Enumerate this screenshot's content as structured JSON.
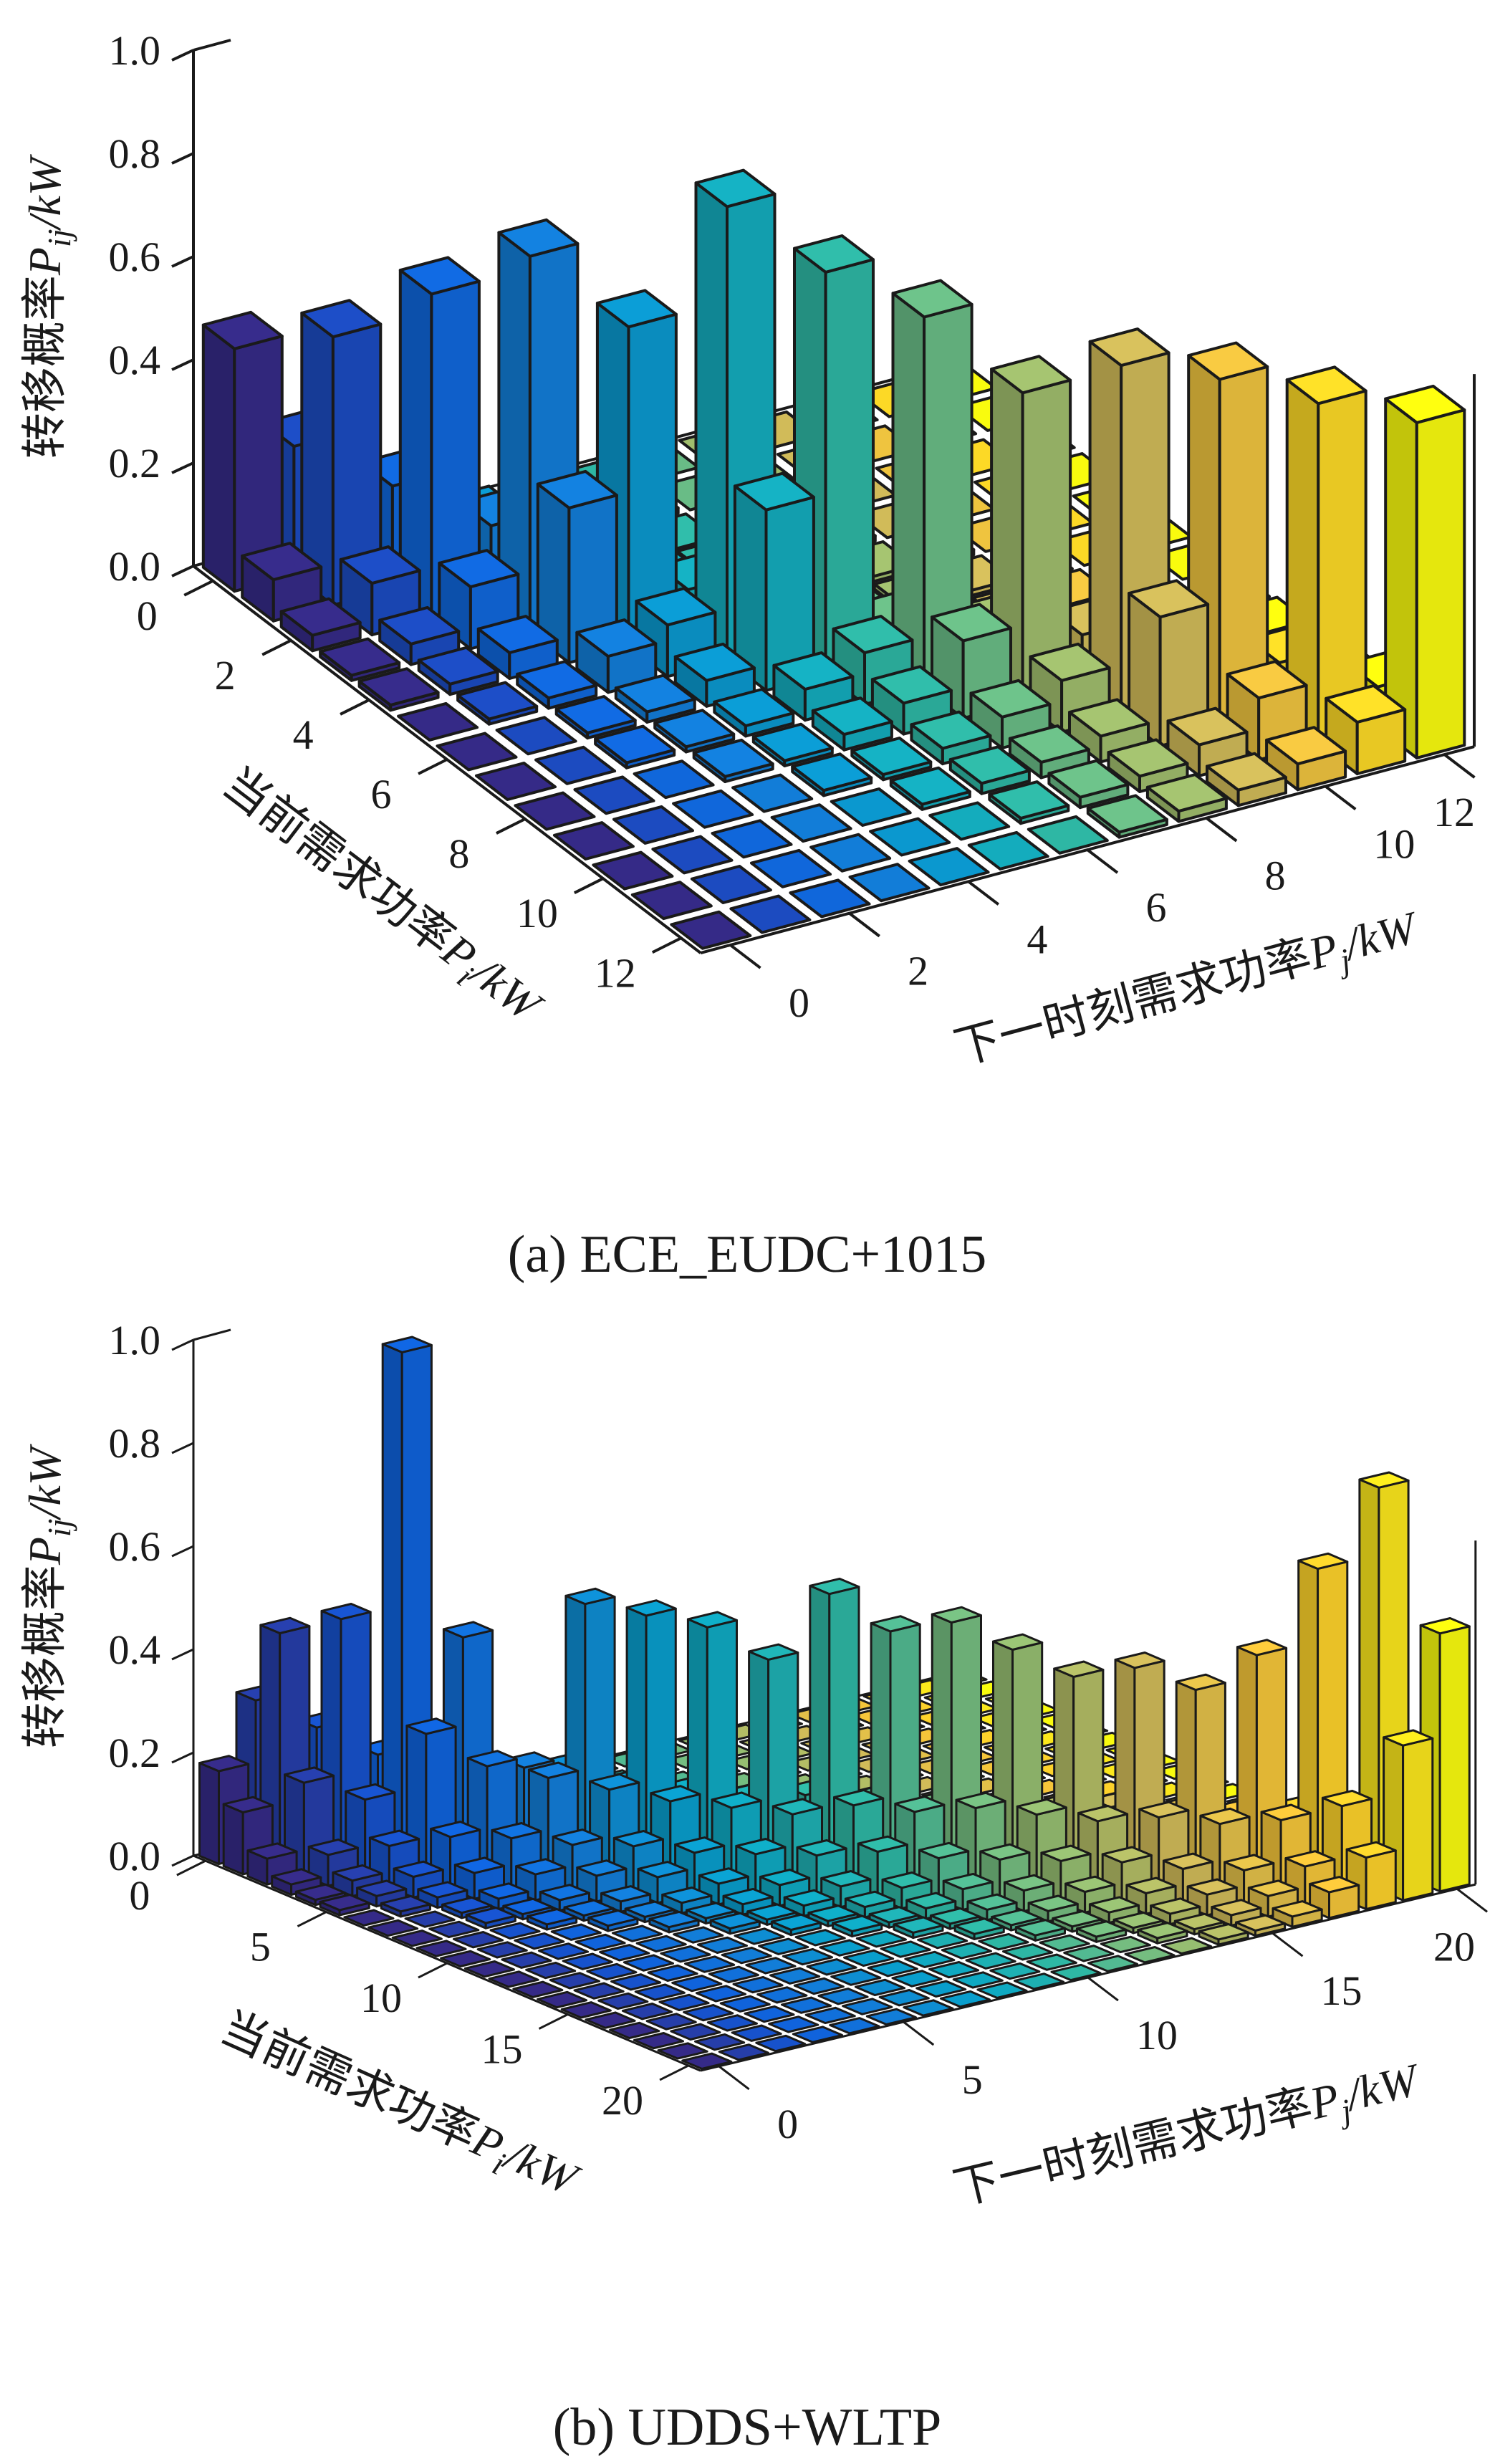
{
  "figure": {
    "background": "#ffffff",
    "edge_color": "#1a1a1a",
    "colormap_name": "parula",
    "colormap_stops": [
      "#352a87",
      "#0f5cdd",
      "#127dd8",
      "#07a6ca",
      "#2eb7a4",
      "#87bf77",
      "#d1bb59",
      "#fec832",
      "#f9fb0e"
    ]
  },
  "chart_data": {
    "type": "bar",
    "variant": "3d-bar-matrix (MATLAB bar3 style transition probability)",
    "legend": "none",
    "grid": "off",
    "charts": [
      {
        "id": "a",
        "caption": "(a) ECE_EUDC+1015",
        "axes": {
          "z": {
            "zh": "转移概率",
            "var": "P",
            "sub": "ij",
            "unit": "/kW",
            "tick_labels": [
              "0.0",
              "0.2",
              "0.4",
              "0.6",
              "0.8",
              "1.0"
            ],
            "tick_values": [
              0,
              0.2,
              0.4,
              0.6,
              0.8,
              1.0
            ],
            "range": [
              0,
              1
            ]
          },
          "i": {
            "zh": "当前需求功率",
            "var": "P",
            "sub": "i",
            "unit": "/kW",
            "tick_labels": [
              "0",
              "2",
              "4",
              "6",
              "8",
              "10",
              "12"
            ],
            "tick_values": [
              0,
              2,
              4,
              6,
              8,
              10,
              12
            ],
            "range": [
              0,
              12
            ]
          },
          "j": {
            "zh": "下一时刻需求功率",
            "var": "P",
            "sub": "j",
            "unit": "/kW",
            "tick_labels": [
              "0",
              "2",
              "4",
              "6",
              "8",
              "10",
              "12"
            ],
            "tick_values": [
              0,
              2,
              4,
              6,
              8,
              10,
              12
            ],
            "range": [
              0,
              12
            ]
          }
        },
        "matrix": [
          [
            0.47,
            0.25,
            0.06,
            0.02,
            0.01,
            0.01,
            0,
            0,
            0,
            0,
            0,
            0,
            0
          ],
          [
            0.08,
            0.52,
            0.2,
            0.05,
            0.02,
            0.01,
            0.01,
            0,
            0,
            0,
            0,
            0,
            0
          ],
          [
            0.03,
            0.1,
            0.63,
            0.15,
            0.05,
            0.02,
            0.01,
            0.01,
            0,
            0,
            0,
            0,
            0
          ],
          [
            0.01,
            0.04,
            0.12,
            0.73,
            0.1,
            0.04,
            0.02,
            0.01,
            0.01,
            0,
            0,
            0,
            0
          ],
          [
            0.01,
            0.02,
            0.05,
            0.3,
            0.62,
            0.08,
            0.03,
            0.02,
            0.01,
            0.01,
            0,
            0,
            0
          ],
          [
            0,
            0.01,
            0.02,
            0.07,
            0.1,
            0.88,
            0.05,
            0.02,
            0.01,
            0.01,
            0,
            0,
            0
          ],
          [
            0,
            0,
            0.01,
            0.02,
            0.05,
            0.35,
            0.78,
            0.06,
            0.02,
            0.01,
            0.01,
            0,
            0
          ],
          [
            0,
            0,
            0.01,
            0.01,
            0.02,
            0.06,
            0.1,
            0.72,
            0.08,
            0.03,
            0.01,
            0.01,
            0
          ],
          [
            0,
            0,
            0,
            0.01,
            0.01,
            0.03,
            0.06,
            0.15,
            0.6,
            0.1,
            0.04,
            0.02,
            0.01
          ],
          [
            0,
            0,
            0,
            0,
            0.01,
            0.01,
            0.03,
            0.06,
            0.1,
            0.68,
            0.12,
            0.04,
            0.02
          ],
          [
            0,
            0,
            0,
            0,
            0,
            0.01,
            0.02,
            0.03,
            0.05,
            0.25,
            0.68,
            0.1,
            0.03
          ],
          [
            0,
            0,
            0,
            0,
            0,
            0,
            0.01,
            0.02,
            0.03,
            0.06,
            0.12,
            0.66,
            0.08
          ],
          [
            0,
            0,
            0,
            0,
            0,
            0,
            0,
            0.01,
            0.02,
            0.03,
            0.05,
            0.1,
            0.65
          ]
        ]
      },
      {
        "id": "b",
        "caption": "(b) UDDS+WLTP",
        "axes": {
          "z": {
            "zh": "转移概率",
            "var": "P",
            "sub": "ij",
            "unit": "/kW",
            "tick_labels": [
              "0.0",
              "0.2",
              "0.4",
              "0.6",
              "0.8",
              "1.0"
            ],
            "tick_values": [
              0,
              0.2,
              0.4,
              0.6,
              0.8,
              1.0
            ],
            "range": [
              0,
              1
            ]
          },
          "i": {
            "zh": "当前需求功率",
            "var": "P",
            "sub": "i",
            "unit": "/kW",
            "tick_labels": [
              "0",
              "5",
              "10",
              "15",
              "20"
            ],
            "tick_values": [
              0,
              5,
              10,
              15,
              20
            ],
            "range": [
              0,
              20
            ]
          },
          "j": {
            "zh": "下一时刻需求功率",
            "var": "P",
            "sub": "j",
            "unit": "/kW",
            "tick_labels": [
              "0",
              "5",
              "10",
              "15",
              "20"
            ],
            "tick_values": [
              0,
              5,
              10,
              15,
              20
            ],
            "range": [
              0,
              20
            ]
          }
        },
        "matrix": [
          [
            0.18,
            0.3,
            0.08,
            0.03,
            0.02,
            0.01,
            0.01,
            0,
            0,
            0,
            0,
            0,
            0,
            0,
            0,
            0,
            0,
            0,
            0,
            0,
            0
          ],
          [
            0.12,
            0.45,
            0.25,
            0.06,
            0.03,
            0.02,
            0.01,
            0.01,
            0,
            0,
            0,
            0,
            0,
            0,
            0,
            0,
            0,
            0,
            0,
            0,
            0
          ],
          [
            0.05,
            0.18,
            0.48,
            0.2,
            0.06,
            0.03,
            0.02,
            0.01,
            0.01,
            0,
            0,
            0,
            0,
            0,
            0,
            0,
            0,
            0,
            0,
            0,
            0
          ],
          [
            0.02,
            0.06,
            0.15,
            1.0,
            0.12,
            0.05,
            0.02,
            0.01,
            0.01,
            0,
            0,
            0,
            0,
            0,
            0,
            0,
            0,
            0,
            0,
            0,
            0
          ],
          [
            0.01,
            0.03,
            0.08,
            0.28,
            0.45,
            0.15,
            0.06,
            0.03,
            0.01,
            0.01,
            0,
            0,
            0,
            0,
            0,
            0,
            0,
            0,
            0,
            0,
            0
          ],
          [
            0.01,
            0.02,
            0.04,
            0.1,
            0.22,
            0.2,
            0.18,
            0.08,
            0.03,
            0.02,
            0.01,
            0,
            0,
            0,
            0,
            0,
            0,
            0,
            0,
            0,
            0
          ],
          [
            0,
            0.01,
            0.02,
            0.05,
            0.1,
            0.2,
            0.52,
            0.15,
            0.06,
            0.03,
            0.01,
            0.01,
            0,
            0,
            0,
            0,
            0,
            0,
            0,
            0,
            0
          ],
          [
            0,
            0,
            0.01,
            0.02,
            0.05,
            0.09,
            0.18,
            0.5,
            0.14,
            0.06,
            0.03,
            0.01,
            0.01,
            0,
            0,
            0,
            0,
            0,
            0,
            0,
            0
          ],
          [
            0,
            0,
            0.01,
            0.01,
            0.02,
            0.05,
            0.09,
            0.16,
            0.48,
            0.13,
            0.06,
            0.03,
            0.01,
            0,
            0,
            0,
            0,
            0,
            0,
            0,
            0
          ],
          [
            0,
            0,
            0,
            0.01,
            0.01,
            0.02,
            0.05,
            0.08,
            0.15,
            0.42,
            0.14,
            0.06,
            0.03,
            0.01,
            0,
            0,
            0,
            0,
            0,
            0,
            0
          ],
          [
            0,
            0,
            0,
            0,
            0.01,
            0.01,
            0.02,
            0.04,
            0.08,
            0.14,
            0.55,
            0.13,
            0.05,
            0.02,
            0.01,
            0,
            0,
            0,
            0,
            0,
            0
          ],
          [
            0,
            0,
            0,
            0,
            0,
            0.01,
            0.01,
            0.02,
            0.04,
            0.08,
            0.16,
            0.48,
            0.12,
            0.05,
            0.02,
            0.01,
            0,
            0,
            0,
            0,
            0
          ],
          [
            0,
            0,
            0,
            0,
            0,
            0,
            0.01,
            0.01,
            0.02,
            0.04,
            0.09,
            0.15,
            0.5,
            0.12,
            0.05,
            0.02,
            0.01,
            0,
            0,
            0,
            0
          ],
          [
            0,
            0,
            0,
            0,
            0,
            0,
            0,
            0.01,
            0.01,
            0.02,
            0.04,
            0.08,
            0.16,
            0.45,
            0.12,
            0.05,
            0.02,
            0.01,
            0,
            0,
            0
          ],
          [
            0,
            0,
            0,
            0,
            0,
            0,
            0,
            0,
            0.01,
            0.01,
            0.02,
            0.04,
            0.08,
            0.15,
            0.4,
            0.13,
            0.05,
            0.02,
            0.01,
            0,
            0
          ],
          [
            0,
            0,
            0,
            0,
            0,
            0,
            0,
            0,
            0,
            0.01,
            0.01,
            0.02,
            0.04,
            0.08,
            0.14,
            0.42,
            0.12,
            0.05,
            0.02,
            0.01,
            0
          ],
          [
            0,
            0,
            0,
            0,
            0,
            0,
            0,
            0,
            0,
            0,
            0.01,
            0.01,
            0.02,
            0.04,
            0.08,
            0.15,
            0.38,
            0.12,
            0.05,
            0.02,
            0.01
          ],
          [
            0,
            0,
            0,
            0,
            0,
            0,
            0,
            0,
            0,
            0,
            0,
            0.01,
            0.01,
            0.02,
            0.04,
            0.07,
            0.14,
            0.45,
            0.13,
            0.05,
            0.02
          ],
          [
            0,
            0,
            0,
            0,
            0,
            0,
            0,
            0,
            0,
            0,
            0,
            0,
            0.01,
            0.01,
            0.02,
            0.04,
            0.07,
            0.15,
            0.62,
            0.14,
            0.05
          ],
          [
            0,
            0,
            0,
            0,
            0,
            0,
            0,
            0,
            0,
            0,
            0,
            0,
            0,
            0.01,
            0.01,
            0.02,
            0.04,
            0.08,
            0.18,
            0.78,
            0.16
          ],
          [
            0,
            0,
            0,
            0,
            0,
            0,
            0,
            0,
            0,
            0,
            0,
            0,
            0,
            0,
            0.01,
            0.01,
            0.02,
            0.05,
            0.1,
            0.3,
            0.5
          ]
        ]
      }
    ]
  }
}
